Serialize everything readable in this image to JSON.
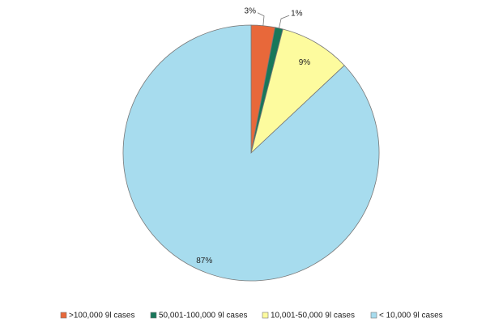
{
  "chart_data": {
    "type": "pie",
    "categories": [
      ">100,000 9l cases",
      "50,001-100,000 9l cases",
      "10,001-50,000 9l cases",
      "< 10,000 9l cases"
    ],
    "values": [
      3,
      1,
      9,
      87
    ],
    "value_labels": [
      "3%",
      "1%",
      "9%",
      "87%"
    ],
    "colors": [
      "#e8683a",
      "#17775a",
      "#fdfb9e",
      "#a7dcee"
    ],
    "legend": "bottom"
  }
}
